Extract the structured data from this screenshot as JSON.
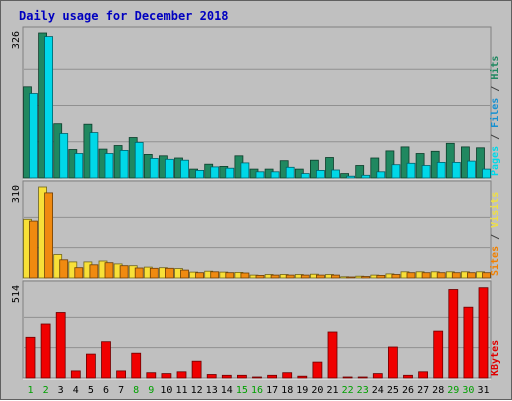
{
  "chart_data": {
    "title": "Daily usage for December 2018",
    "type": "bar",
    "days": [
      "1",
      "2",
      "3",
      "4",
      "5",
      "6",
      "7",
      "8",
      "9",
      "10",
      "11",
      "12",
      "13",
      "14",
      "15",
      "16",
      "17",
      "18",
      "19",
      "20",
      "21",
      "22",
      "23",
      "24",
      "25",
      "26",
      "27",
      "28",
      "29",
      "30",
      "31"
    ],
    "weekend_days": [
      "1",
      "2",
      "8",
      "9",
      "15",
      "16",
      "22",
      "23",
      "29",
      "30"
    ],
    "panels": [
      {
        "id": "hits-files-pages",
        "max_label": "326",
        "ymax": 326,
        "right_labels": [
          {
            "text": "Pages",
            "color": "#00d8e8"
          },
          {
            "text": " / ",
            "color": "#404040"
          },
          {
            "text": "Files",
            "color": "#1890d0"
          },
          {
            "text": " / ",
            "color": "#404040"
          },
          {
            "text": "Hits",
            "color": "#208860"
          }
        ],
        "series": [
          {
            "key": "hits",
            "color": "#208860",
            "values": [
              205,
              326,
              122,
              64,
              121,
              65,
              73,
              91,
              53,
              50,
              45,
              20,
              31,
              26,
              50,
              20,
              20,
              39,
              20,
              40,
              46,
              10,
              28,
              45,
              61,
              70,
              55,
              60,
              78,
              70,
              68
            ]
          },
          {
            "key": "files",
            "color": "#00d8e8",
            "values": [
              190,
              318,
              100,
              55,
              102,
              55,
              62,
              80,
              44,
              42,
              40,
              17,
              25,
              22,
              34,
              14,
              14,
              24,
              10,
              17,
              18,
              4,
              6,
              14,
              30,
              33,
              28,
              35,
              35,
              38,
              20
            ]
          }
        ]
      },
      {
        "id": "visits-sites",
        "max_label": "310",
        "ymax": 310,
        "right_labels": [
          {
            "text": "Sites",
            "color": "#f08000"
          },
          {
            "text": " / ",
            "color": "#404040"
          },
          {
            "text": "Visits",
            "color": "#f0e040"
          }
        ],
        "series": [
          {
            "key": "visits",
            "color": "#f8e038",
            "values": [
              200,
              310,
              80,
              55,
              55,
              58,
              48,
              42,
              37,
              35,
              32,
              20,
              23,
              20,
              19,
              10,
              12,
              12,
              12,
              13,
              12,
              4,
              6,
              10,
              14,
              21,
              21,
              21,
              21,
              21,
              21
            ]
          },
          {
            "key": "sites",
            "color": "#f08a10",
            "values": [
              194,
              290,
              62,
              35,
              45,
              52,
              42,
              34,
              33,
              33,
              27,
              18,
              21,
              18,
              17,
              9,
              10,
              10,
              10,
              10,
              10,
              3,
              5,
              9,
              12,
              18,
              18,
              18,
              18,
              18,
              18
            ]
          }
        ]
      },
      {
        "id": "kbytes",
        "max_label": "514",
        "ymax": 514,
        "right_labels": [
          {
            "text": "KBytes",
            "color": "#e00000"
          }
        ],
        "series": [
          {
            "key": "kbytes",
            "color": "#f00000",
            "values": [
              230,
              305,
              370,
              40,
              135,
              205,
              40,
              140,
              30,
              25,
              35,
              95,
              20,
              15,
              15,
              5,
              15,
              30,
              10,
              90,
              260,
              5,
              5,
              25,
              175,
              15,
              35,
              265,
              500,
              400,
              510
            ]
          }
        ]
      }
    ]
  }
}
